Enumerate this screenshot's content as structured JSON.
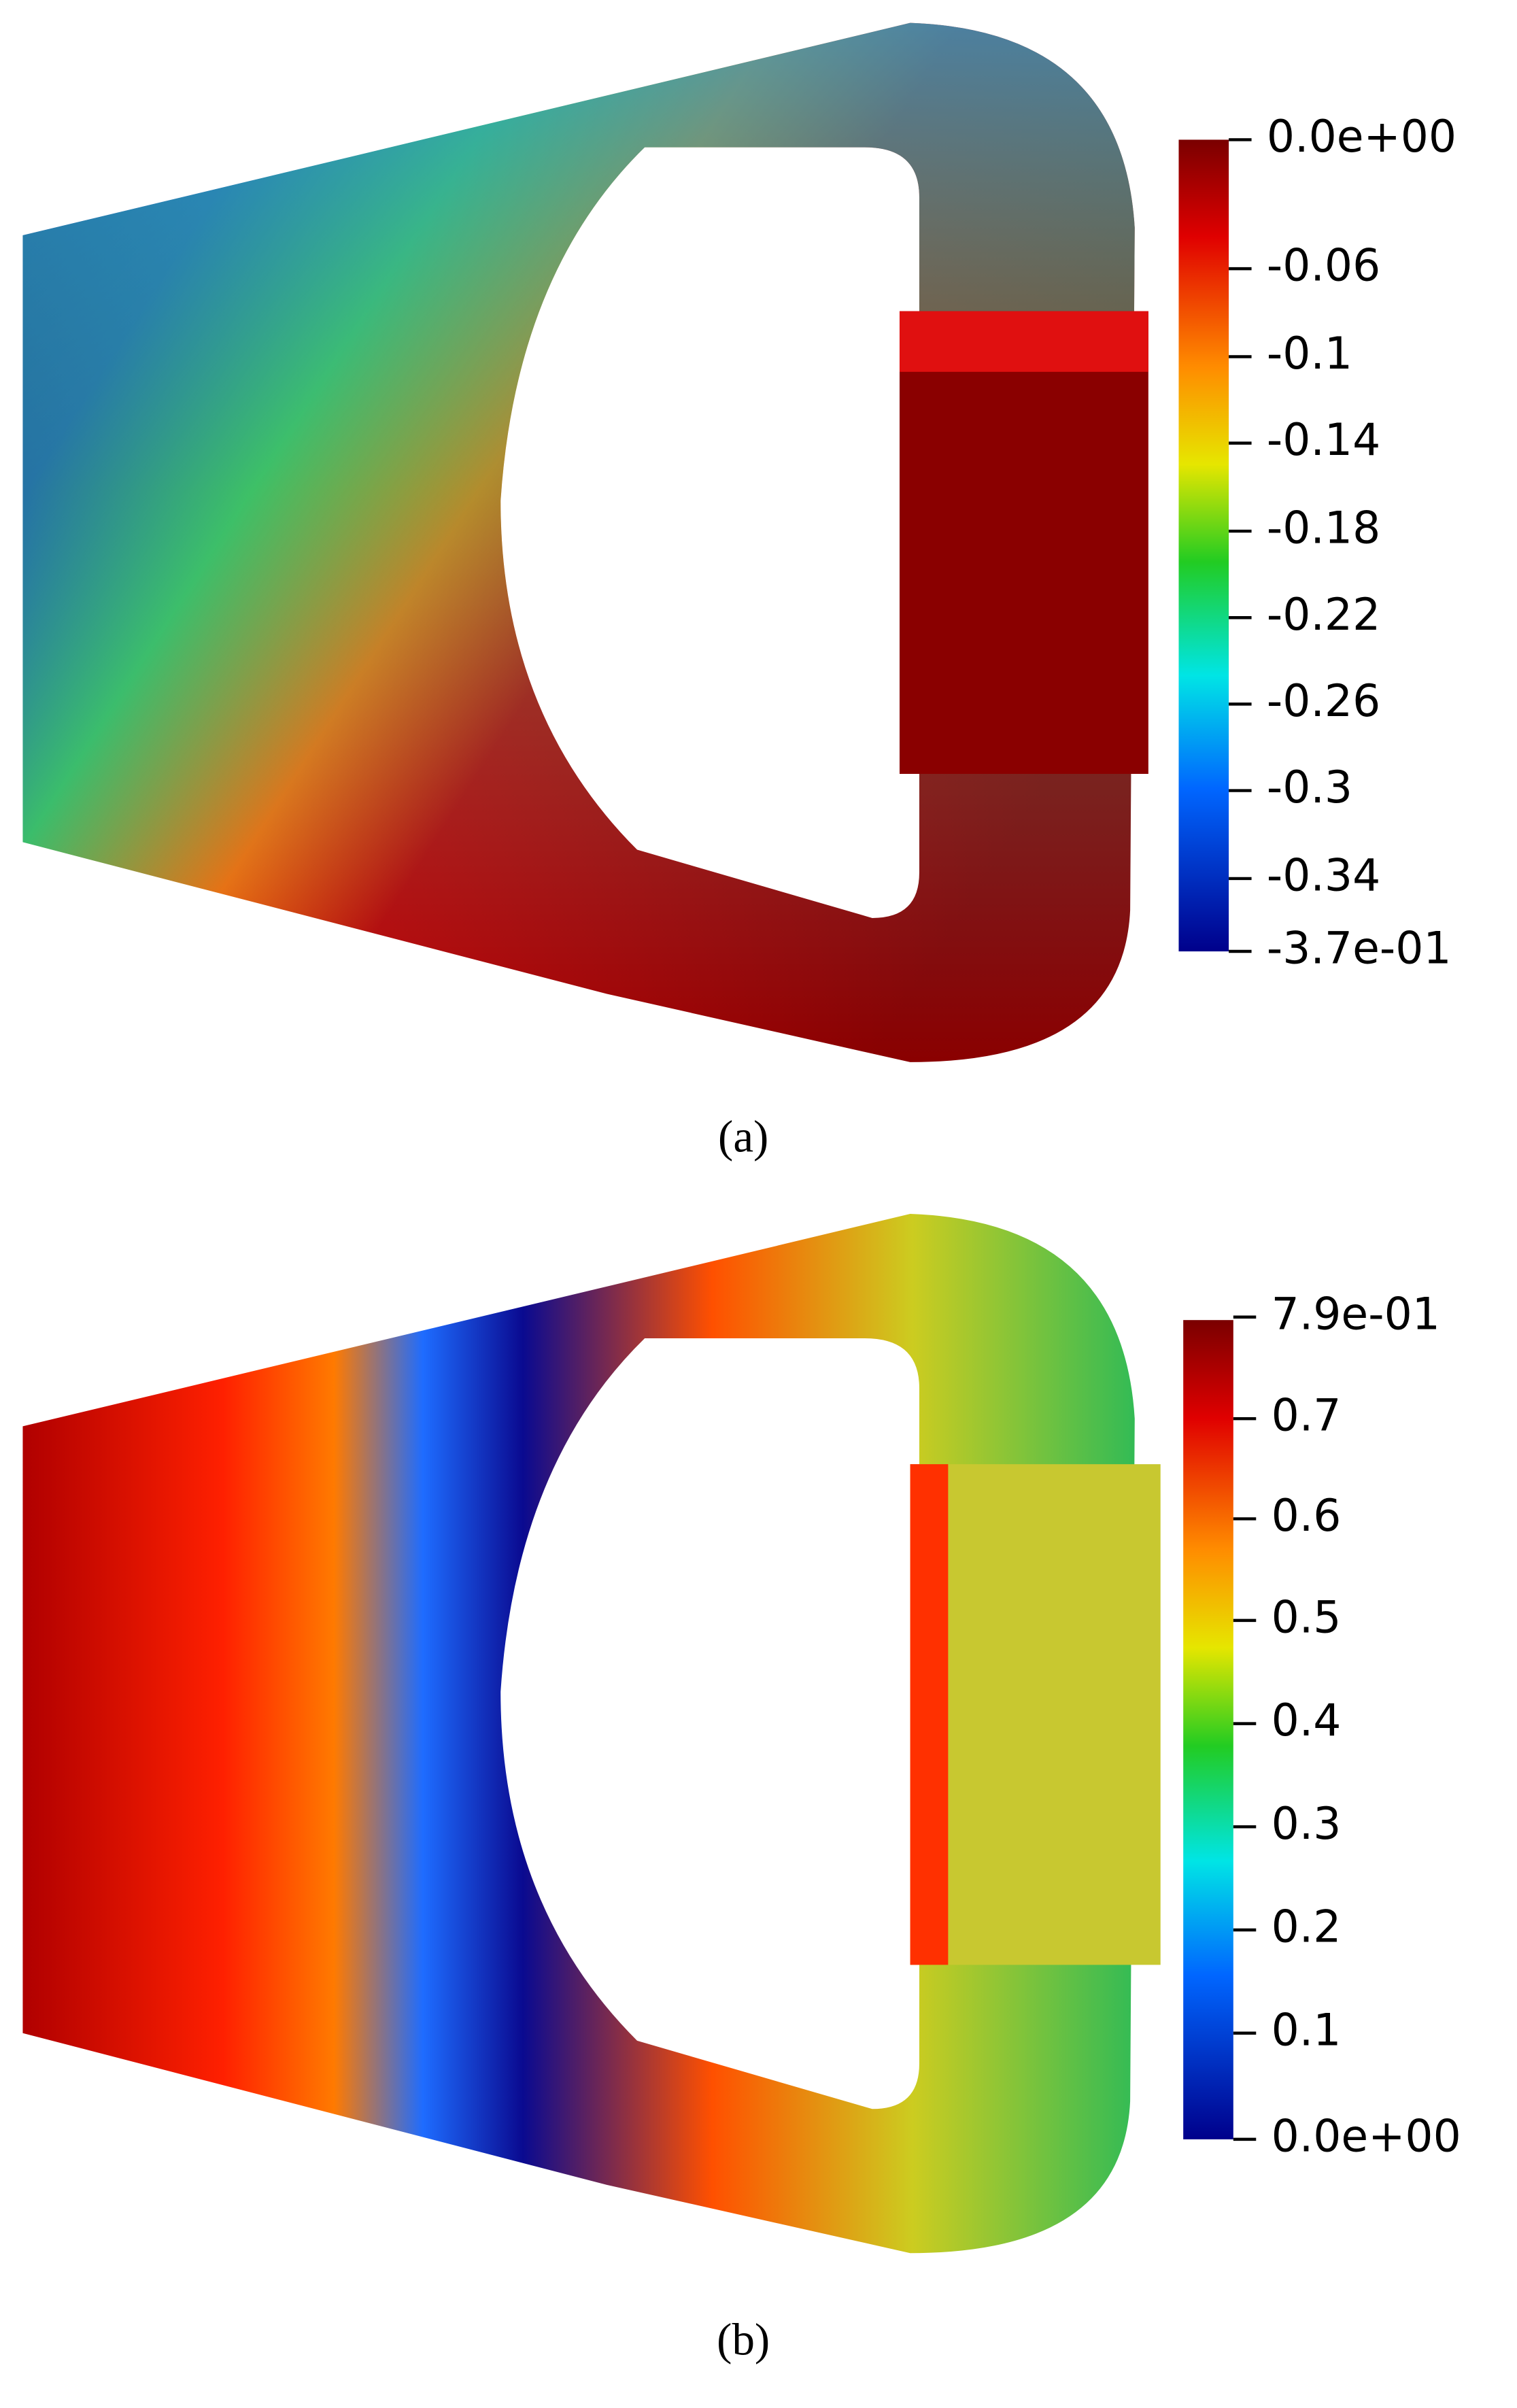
{
  "panels": [
    {
      "caption": "(a)",
      "colorbar": {
        "ticks": [
          "0.0e+00",
          "-0.06",
          "-0.1",
          "-0.14",
          "-0.18",
          "-0.22",
          "-0.26",
          "-0.3",
          "-0.34",
          "-3.7e-01"
        ]
      }
    },
    {
      "caption": "(b)",
      "colorbar": {
        "ticks": [
          "7.9e-01",
          "0.7",
          "0.6",
          "0.5",
          "0.4",
          "0.3",
          "0.2",
          "0.1",
          "0.0e+00"
        ]
      }
    }
  ]
}
